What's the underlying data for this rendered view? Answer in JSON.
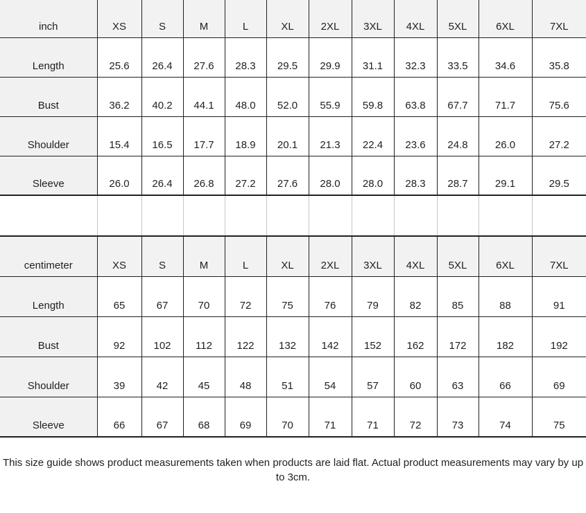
{
  "colors": {
    "border": "#1f1f1f",
    "gap_line": "#c6c6c6",
    "header_fill": "#f2f2f2",
    "label_fill": "#f1f1f1",
    "text": "#1f1f1f"
  },
  "sizes": [
    "XS",
    "S",
    "M",
    "L",
    "XL",
    "2XL",
    "3XL",
    "4XL",
    "5XL",
    "6XL",
    "7XL"
  ],
  "tables": [
    {
      "unit_label": "inch",
      "rows": [
        {
          "label": "Length",
          "values": [
            "25.6",
            "26.4",
            "27.6",
            "28.3",
            "29.5",
            "29.9",
            "31.1",
            "32.3",
            "33.5",
            "34.6",
            "35.8"
          ]
        },
        {
          "label": "Bust",
          "values": [
            "36.2",
            "40.2",
            "44.1",
            "48.0",
            "52.0",
            "55.9",
            "59.8",
            "63.8",
            "67.7",
            "71.7",
            "75.6"
          ]
        },
        {
          "label": "Shoulder",
          "values": [
            "15.4",
            "16.5",
            "17.7",
            "18.9",
            "20.1",
            "21.3",
            "22.4",
            "23.6",
            "24.8",
            "26.0",
            "27.2"
          ]
        },
        {
          "label": "Sleeve",
          "values": [
            "26.0",
            "26.4",
            "26.8",
            "27.2",
            "27.6",
            "28.0",
            "28.0",
            "28.3",
            "28.7",
            "29.1",
            "29.5"
          ]
        }
      ]
    },
    {
      "unit_label": "centimeter",
      "rows": [
        {
          "label": "Length",
          "values": [
            "65",
            "67",
            "70",
            "72",
            "75",
            "76",
            "79",
            "82",
            "85",
            "88",
            "91"
          ]
        },
        {
          "label": "Bust",
          "values": [
            "92",
            "102",
            "112",
            "122",
            "132",
            "142",
            "152",
            "162",
            "172",
            "182",
            "192"
          ]
        },
        {
          "label": "Shoulder",
          "values": [
            "39",
            "42",
            "45",
            "48",
            "51",
            "54",
            "57",
            "60",
            "63",
            "66",
            "69"
          ]
        },
        {
          "label": "Sleeve",
          "values": [
            "66",
            "67",
            "68",
            "69",
            "70",
            "71",
            "71",
            "72",
            "73",
            "74",
            "75"
          ]
        }
      ]
    }
  ],
  "footer": {
    "note": "This size guide shows product measurements taken when products are laid flat. Actual product measurements may vary by up to 3cm."
  }
}
